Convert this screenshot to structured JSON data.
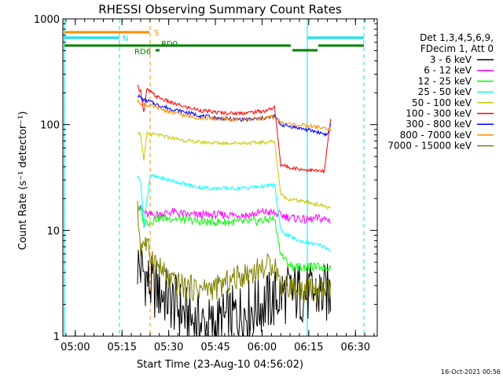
{
  "chart_data": {
    "type": "line",
    "title": "RHESSI Observing Summary Count Rates",
    "xlabel": "Start Time (23-Aug-10 04:56:02)",
    "ylabel": "Count Rate (s⁻¹ detector⁻¹)",
    "yscale": "log",
    "ylim": [
      1,
      1000
    ],
    "xlim_minutes_after_0456": [
      0,
      101
    ],
    "x_ticks": [
      "05:00",
      "05:15",
      "05:30",
      "05:45",
      "06:00",
      "06:15",
      "06:30"
    ],
    "y_ticks": [
      "1",
      "10",
      "100",
      "1000"
    ],
    "legend_header": [
      "Det 1,3,4,5,6,9,",
      "FDecim 1, Att 0"
    ],
    "legend_position": "right",
    "footer_stamp": "16-Oct-2021 00:56",
    "flags": [
      {
        "label": "S",
        "color": "#ff8c00"
      },
      {
        "label": "N",
        "color": "#00e5ee"
      },
      {
        "label": "RD0",
        "color": "#008000"
      },
      {
        "label": "RD6",
        "color": "#008000"
      }
    ],
    "series": [
      {
        "name": "3 - 6 keV",
        "color": "#000000",
        "x": [
          24,
          26,
          28,
          32,
          36,
          40,
          44,
          48,
          52,
          56,
          60,
          64,
          68,
          70,
          72,
          74,
          76,
          78,
          82,
          86
        ],
        "y": [
          4.8,
          4,
          3,
          2.5,
          2,
          1.5,
          1.3,
          1.2,
          1.4,
          1.6,
          1.8,
          2,
          2.2,
          2.5,
          2.5,
          2.5,
          2.6,
          2.5,
          2.5,
          2.5
        ]
      },
      {
        "name": "6 - 12 keV",
        "color": "#ff00ff",
        "x": [
          24,
          26,
          27,
          30,
          35,
          40,
          45,
          50,
          55,
          60,
          65,
          68,
          70,
          72,
          74,
          76,
          78,
          82,
          86
        ],
        "y": [
          17,
          15,
          14,
          14,
          15,
          14,
          14,
          14,
          14,
          14,
          15,
          14.5,
          14,
          13.5,
          13,
          13,
          12.5,
          13,
          12.5
        ]
      },
      {
        "name": "12 - 25 keV",
        "color": "#00ff00",
        "x": [
          24,
          25,
          26,
          28,
          30,
          35,
          40,
          45,
          50,
          55,
          60,
          65,
          68,
          70,
          72,
          74,
          76,
          78,
          82,
          86
        ],
        "y": [
          18,
          15,
          12,
          12,
          13,
          13,
          12.5,
          12,
          12,
          12,
          12,
          12.5,
          13,
          6,
          5,
          4.5,
          4.5,
          4.5,
          4.5,
          4.5
        ]
      },
      {
        "name": "25 - 50 keV",
        "color": "#00ffff",
        "x": [
          24,
          25,
          26,
          28,
          32,
          36,
          40,
          44,
          48,
          52,
          56,
          60,
          64,
          68,
          70,
          72,
          76,
          80,
          84,
          86
        ],
        "y": [
          32,
          30,
          11,
          33,
          31,
          29,
          27,
          25.5,
          25,
          25,
          25,
          25.5,
          26,
          27,
          10,
          9,
          8,
          7.5,
          7,
          6.5
        ]
      },
      {
        "name": "50 - 100 keV",
        "color": "#c8c800",
        "x": [
          24,
          25,
          26,
          27,
          30,
          35,
          40,
          45,
          50,
          55,
          60,
          65,
          68,
          70,
          72,
          76,
          80,
          84,
          86
        ],
        "y": [
          88,
          80,
          45,
          82,
          80,
          75,
          70,
          68,
          67,
          67,
          67,
          68,
          70,
          22,
          20,
          19,
          18,
          17,
          16
        ]
      },
      {
        "name": "100 - 300 keV",
        "color": "#ff0000",
        "x": [
          24,
          25,
          26,
          27,
          30,
          35,
          40,
          45,
          50,
          55,
          60,
          65,
          68,
          70,
          72,
          76,
          80,
          84,
          86
        ],
        "y": [
          230,
          210,
          130,
          215,
          185,
          160,
          145,
          135,
          130,
          128,
          130,
          135,
          145,
          42,
          40,
          38,
          37,
          36,
          110
        ]
      },
      {
        "name": "300 - 800 keV",
        "color": "#0000ff",
        "x": [
          24,
          26,
          28,
          30,
          35,
          40,
          45,
          50,
          55,
          60,
          65,
          68,
          70,
          74,
          78,
          82,
          85,
          86
        ],
        "y": [
          190,
          170,
          165,
          155,
          140,
          130,
          120,
          115,
          112,
          112,
          115,
          120,
          100,
          95,
          90,
          85,
          80,
          100
        ]
      },
      {
        "name": "800 - 7000 keV",
        "color": "#ff8c00",
        "x": [
          24,
          26,
          28,
          30,
          35,
          40,
          45,
          50,
          55,
          60,
          65,
          68,
          70,
          74,
          78,
          82,
          86
        ],
        "y": [
          165,
          155,
          150,
          145,
          130,
          120,
          115,
          113,
          112,
          113,
          115,
          118,
          105,
          100,
          98,
          95,
          90
        ]
      },
      {
        "name": "7000 - 15000 keV",
        "color": "#808000",
        "x": [
          24,
          25,
          26,
          28,
          30,
          32,
          35,
          40,
          45,
          50,
          55,
          60,
          65,
          68,
          70,
          72,
          76,
          80,
          84,
          86
        ],
        "y": [
          15,
          7,
          8,
          6,
          5,
          4,
          3.2,
          2.9,
          2.8,
          2.9,
          3.5,
          4,
          4.5,
          5,
          3,
          3,
          2.8,
          2.7,
          2.7,
          2.7
        ]
      }
    ]
  }
}
